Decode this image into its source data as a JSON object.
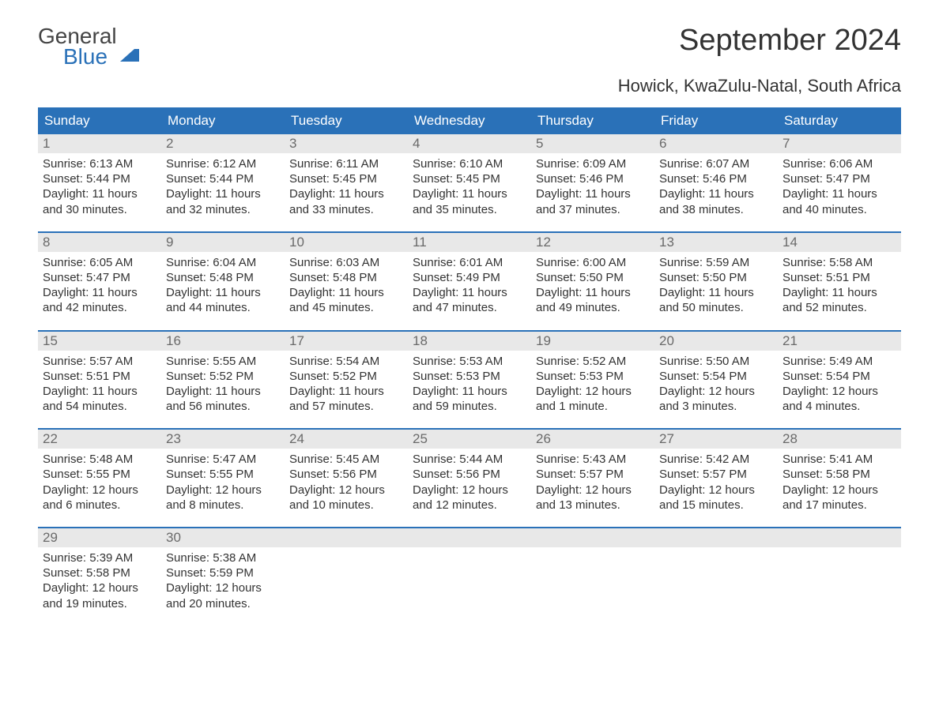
{
  "logo": {
    "line1": "General",
    "line2": "Blue"
  },
  "title": "September 2024",
  "subtitle": "Howick, KwaZulu-Natal, South Africa",
  "colors": {
    "header_bg": "#2a71b8",
    "header_text": "#ffffff",
    "daynum_bg": "#e8e8e8",
    "daynum_text": "#6a6a6a",
    "body_text": "#333333",
    "week_divider": "#2a71b8",
    "page_bg": "#ffffff",
    "logo_general": "#444444",
    "logo_blue": "#2a71b8"
  },
  "typography": {
    "title_fontsize": 38,
    "subtitle_fontsize": 22,
    "dayheader_fontsize": 17,
    "daynum_fontsize": 17,
    "cell_fontsize": 15,
    "font_family": "Arial"
  },
  "layout": {
    "columns": 7,
    "rows": 5,
    "column_labels_position": "top"
  },
  "day_labels": [
    "Sunday",
    "Monday",
    "Tuesday",
    "Wednesday",
    "Thursday",
    "Friday",
    "Saturday"
  ],
  "weeks": [
    [
      {
        "n": "1",
        "sunrise": "Sunrise: 6:13 AM",
        "sunset": "Sunset: 5:44 PM",
        "d1": "Daylight: 11 hours",
        "d2": "and 30 minutes."
      },
      {
        "n": "2",
        "sunrise": "Sunrise: 6:12 AM",
        "sunset": "Sunset: 5:44 PM",
        "d1": "Daylight: 11 hours",
        "d2": "and 32 minutes."
      },
      {
        "n": "3",
        "sunrise": "Sunrise: 6:11 AM",
        "sunset": "Sunset: 5:45 PM",
        "d1": "Daylight: 11 hours",
        "d2": "and 33 minutes."
      },
      {
        "n": "4",
        "sunrise": "Sunrise: 6:10 AM",
        "sunset": "Sunset: 5:45 PM",
        "d1": "Daylight: 11 hours",
        "d2": "and 35 minutes."
      },
      {
        "n": "5",
        "sunrise": "Sunrise: 6:09 AM",
        "sunset": "Sunset: 5:46 PM",
        "d1": "Daylight: 11 hours",
        "d2": "and 37 minutes."
      },
      {
        "n": "6",
        "sunrise": "Sunrise: 6:07 AM",
        "sunset": "Sunset: 5:46 PM",
        "d1": "Daylight: 11 hours",
        "d2": "and 38 minutes."
      },
      {
        "n": "7",
        "sunrise": "Sunrise: 6:06 AM",
        "sunset": "Sunset: 5:47 PM",
        "d1": "Daylight: 11 hours",
        "d2": "and 40 minutes."
      }
    ],
    [
      {
        "n": "8",
        "sunrise": "Sunrise: 6:05 AM",
        "sunset": "Sunset: 5:47 PM",
        "d1": "Daylight: 11 hours",
        "d2": "and 42 minutes."
      },
      {
        "n": "9",
        "sunrise": "Sunrise: 6:04 AM",
        "sunset": "Sunset: 5:48 PM",
        "d1": "Daylight: 11 hours",
        "d2": "and 44 minutes."
      },
      {
        "n": "10",
        "sunrise": "Sunrise: 6:03 AM",
        "sunset": "Sunset: 5:48 PM",
        "d1": "Daylight: 11 hours",
        "d2": "and 45 minutes."
      },
      {
        "n": "11",
        "sunrise": "Sunrise: 6:01 AM",
        "sunset": "Sunset: 5:49 PM",
        "d1": "Daylight: 11 hours",
        "d2": "and 47 minutes."
      },
      {
        "n": "12",
        "sunrise": "Sunrise: 6:00 AM",
        "sunset": "Sunset: 5:50 PM",
        "d1": "Daylight: 11 hours",
        "d2": "and 49 minutes."
      },
      {
        "n": "13",
        "sunrise": "Sunrise: 5:59 AM",
        "sunset": "Sunset: 5:50 PM",
        "d1": "Daylight: 11 hours",
        "d2": "and 50 minutes."
      },
      {
        "n": "14",
        "sunrise": "Sunrise: 5:58 AM",
        "sunset": "Sunset: 5:51 PM",
        "d1": "Daylight: 11 hours",
        "d2": "and 52 minutes."
      }
    ],
    [
      {
        "n": "15",
        "sunrise": "Sunrise: 5:57 AM",
        "sunset": "Sunset: 5:51 PM",
        "d1": "Daylight: 11 hours",
        "d2": "and 54 minutes."
      },
      {
        "n": "16",
        "sunrise": "Sunrise: 5:55 AM",
        "sunset": "Sunset: 5:52 PM",
        "d1": "Daylight: 11 hours",
        "d2": "and 56 minutes."
      },
      {
        "n": "17",
        "sunrise": "Sunrise: 5:54 AM",
        "sunset": "Sunset: 5:52 PM",
        "d1": "Daylight: 11 hours",
        "d2": "and 57 minutes."
      },
      {
        "n": "18",
        "sunrise": "Sunrise: 5:53 AM",
        "sunset": "Sunset: 5:53 PM",
        "d1": "Daylight: 11 hours",
        "d2": "and 59 minutes."
      },
      {
        "n": "19",
        "sunrise": "Sunrise: 5:52 AM",
        "sunset": "Sunset: 5:53 PM",
        "d1": "Daylight: 12 hours",
        "d2": "and 1 minute."
      },
      {
        "n": "20",
        "sunrise": "Sunrise: 5:50 AM",
        "sunset": "Sunset: 5:54 PM",
        "d1": "Daylight: 12 hours",
        "d2": "and 3 minutes."
      },
      {
        "n": "21",
        "sunrise": "Sunrise: 5:49 AM",
        "sunset": "Sunset: 5:54 PM",
        "d1": "Daylight: 12 hours",
        "d2": "and 4 minutes."
      }
    ],
    [
      {
        "n": "22",
        "sunrise": "Sunrise: 5:48 AM",
        "sunset": "Sunset: 5:55 PM",
        "d1": "Daylight: 12 hours",
        "d2": "and 6 minutes."
      },
      {
        "n": "23",
        "sunrise": "Sunrise: 5:47 AM",
        "sunset": "Sunset: 5:55 PM",
        "d1": "Daylight: 12 hours",
        "d2": "and 8 minutes."
      },
      {
        "n": "24",
        "sunrise": "Sunrise: 5:45 AM",
        "sunset": "Sunset: 5:56 PM",
        "d1": "Daylight: 12 hours",
        "d2": "and 10 minutes."
      },
      {
        "n": "25",
        "sunrise": "Sunrise: 5:44 AM",
        "sunset": "Sunset: 5:56 PM",
        "d1": "Daylight: 12 hours",
        "d2": "and 12 minutes."
      },
      {
        "n": "26",
        "sunrise": "Sunrise: 5:43 AM",
        "sunset": "Sunset: 5:57 PM",
        "d1": "Daylight: 12 hours",
        "d2": "and 13 minutes."
      },
      {
        "n": "27",
        "sunrise": "Sunrise: 5:42 AM",
        "sunset": "Sunset: 5:57 PM",
        "d1": "Daylight: 12 hours",
        "d2": "and 15 minutes."
      },
      {
        "n": "28",
        "sunrise": "Sunrise: 5:41 AM",
        "sunset": "Sunset: 5:58 PM",
        "d1": "Daylight: 12 hours",
        "d2": "and 17 minutes."
      }
    ],
    [
      {
        "n": "29",
        "sunrise": "Sunrise: 5:39 AM",
        "sunset": "Sunset: 5:58 PM",
        "d1": "Daylight: 12 hours",
        "d2": "and 19 minutes."
      },
      {
        "n": "30",
        "sunrise": "Sunrise: 5:38 AM",
        "sunset": "Sunset: 5:59 PM",
        "d1": "Daylight: 12 hours",
        "d2": "and 20 minutes."
      },
      null,
      null,
      null,
      null,
      null
    ]
  ]
}
